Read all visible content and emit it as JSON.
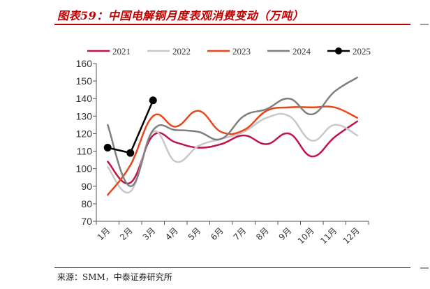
{
  "figure": {
    "title": "图表59：中国电解铜月度表观消费变动（万吨）",
    "source": "来源：SMM，中泰证券研究所"
  },
  "chart_data": {
    "type": "line",
    "title": "",
    "xlabel": "",
    "ylabel": "",
    "unit": "万吨",
    "categories": [
      "1月",
      "2月",
      "3月",
      "4月",
      "5月",
      "6月",
      "7月",
      "8月",
      "9月",
      "10月",
      "11月",
      "12月"
    ],
    "ylim": [
      70,
      160
    ],
    "yticks": [
      70,
      80,
      90,
      100,
      110,
      120,
      130,
      140,
      150,
      160
    ],
    "grid": false,
    "legend_position": "top",
    "series": [
      {
        "name": "2021",
        "color": "#c0144a",
        "markers": false,
        "values": [
          104,
          92,
          119,
          115,
          112,
          114,
          119,
          114,
          120,
          107,
          118,
          127
        ]
      },
      {
        "name": "2022",
        "color": "#c8c8c8",
        "markers": false,
        "values": [
          101,
          87,
          121,
          104,
          113,
          117,
          121,
          129,
          130,
          116,
          125,
          119
        ]
      },
      {
        "name": "2023",
        "color": "#e8471c",
        "markers": false,
        "values": [
          85,
          102,
          130,
          124,
          133,
          121,
          122,
          133,
          135,
          135,
          135,
          129
        ]
      },
      {
        "name": "2024",
        "color": "#7f7f7f",
        "markers": false,
        "values": [
          125,
          90,
          122,
          122,
          121,
          117,
          130,
          134,
          140,
          131,
          144,
          152
        ]
      },
      {
        "name": "2025",
        "color": "#000000",
        "markers": true,
        "values": [
          112,
          109,
          139,
          null,
          null,
          null,
          null,
          null,
          null,
          null,
          null,
          null
        ]
      }
    ]
  }
}
